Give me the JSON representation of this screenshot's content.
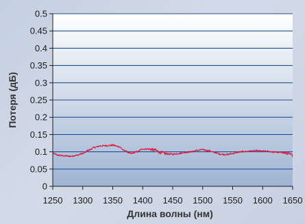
{
  "chart_data": {
    "type": "line",
    "title": "",
    "xlabel": "Длина волны (нм)",
    "ylabel": "Потеря (дБ)",
    "xlim": [
      1250,
      1650
    ],
    "ylim": [
      0,
      0.5
    ],
    "xticks": [
      1250,
      1300,
      1350,
      1400,
      1450,
      1500,
      1550,
      1600,
      1650
    ],
    "yticks": [
      0,
      0.05,
      0.1,
      0.15,
      0.2,
      0.25,
      0.3,
      0.35,
      0.4,
      0.45,
      0.5
    ],
    "ytick_labels": [
      "0",
      "0.05",
      "0.1",
      "0.15",
      "0.2",
      "0.25",
      "0.3",
      "0.35",
      "0.4",
      "0.45",
      "0.5"
    ],
    "grid": true,
    "legend": "none",
    "colors": {
      "series": "#e0193a",
      "grid": "#1f4f96",
      "plot_top": "#ffffff",
      "plot_bottom": "#9fb4d2"
    },
    "series": [
      {
        "x": [
          1250,
          1260,
          1270,
          1280,
          1290,
          1300,
          1310,
          1320,
          1330,
          1340,
          1350,
          1360,
          1370,
          1380,
          1390,
          1400,
          1410,
          1420,
          1430,
          1440,
          1450,
          1460,
          1470,
          1480,
          1490,
          1500,
          1510,
          1520,
          1530,
          1540,
          1550,
          1560,
          1570,
          1580,
          1590,
          1600,
          1610,
          1620,
          1630,
          1640,
          1650
        ],
        "y": [
          0.095,
          0.09,
          0.088,
          0.087,
          0.09,
          0.095,
          0.105,
          0.113,
          0.117,
          0.118,
          0.119,
          0.115,
          0.103,
          0.095,
          0.1,
          0.108,
          0.108,
          0.105,
          0.098,
          0.094,
          0.093,
          0.095,
          0.098,
          0.1,
          0.104,
          0.106,
          0.103,
          0.098,
          0.093,
          0.092,
          0.095,
          0.099,
          0.101,
          0.102,
          0.103,
          0.102,
          0.101,
          0.099,
          0.098,
          0.096,
          0.09
        ]
      }
    ]
  }
}
